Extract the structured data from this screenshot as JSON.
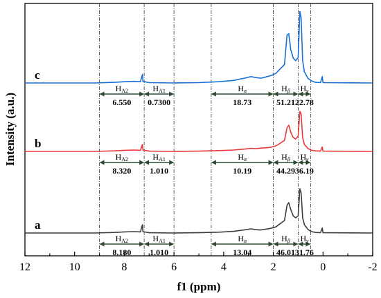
{
  "chart_data": {
    "type": "line",
    "title": "",
    "xlabel": "f1 (ppm)",
    "ylabel": "Intensity (a.u.)",
    "xlim": [
      12,
      -2
    ],
    "x_reversed": true,
    "x_ticks": [
      "12",
      "10",
      "8",
      "6",
      "4",
      "2",
      "0",
      "-2"
    ],
    "x_minor_step": 1,
    "y_ticks_shown": false,
    "grid": false,
    "legend": "none",
    "boundaries_ppm": [
      9.0,
      7.2,
      6.0,
      4.5,
      2.0,
      1.0,
      0.5
    ],
    "series": [
      {
        "name": "a",
        "color": "#3c3c3c",
        "baseline": 0.0,
        "points": [
          [
            12,
            0
          ],
          [
            9.2,
            0
          ],
          [
            8.4,
            0.02
          ],
          [
            8.0,
            0.04
          ],
          [
            7.6,
            0.05
          ],
          [
            7.35,
            0.04
          ],
          [
            7.27,
            0.3
          ],
          [
            7.25,
            0.05
          ],
          [
            7.0,
            0.01
          ],
          [
            6.0,
            0
          ],
          [
            5.0,
            0.01
          ],
          [
            4.2,
            0.03
          ],
          [
            3.6,
            0.06
          ],
          [
            3.1,
            0.12
          ],
          [
            2.9,
            0.15
          ],
          [
            2.7,
            0.12
          ],
          [
            2.5,
            0.11
          ],
          [
            2.3,
            0.14
          ],
          [
            2.1,
            0.17
          ],
          [
            1.9,
            0.22
          ],
          [
            1.75,
            0.32
          ],
          [
            1.55,
            0.45
          ],
          [
            1.45,
            1.0
          ],
          [
            1.38,
            1.1
          ],
          [
            1.3,
            0.85
          ],
          [
            1.2,
            0.62
          ],
          [
            1.1,
            0.55
          ],
          [
            1.0,
            0.62
          ],
          [
            0.93,
            1.6
          ],
          [
            0.88,
            1.45
          ],
          [
            0.82,
            0.55
          ],
          [
            0.75,
            0.3
          ],
          [
            0.6,
            0.12
          ],
          [
            0.45,
            0.05
          ],
          [
            0.3,
            0.02
          ],
          [
            0.1,
            0.01
          ],
          [
            0.03,
            0.18
          ],
          [
            0.0,
            0.01
          ],
          [
            -2,
            0
          ]
        ],
        "regions": [
          {
            "label": "H",
            "sub": "A2",
            "value": "8.180"
          },
          {
            "label": "H",
            "sub": "A1",
            "value": "1.010"
          },
          {
            "label": "H",
            "sub": "α",
            "value": "13.04"
          },
          {
            "label": "H",
            "sub": "β",
            "value": "46.01"
          },
          {
            "label": "H",
            "sub": "γ",
            "value": "31.76"
          }
        ]
      },
      {
        "name": "b",
        "color": "#e8383b",
        "baseline": 0.0,
        "points": [
          [
            12,
            0
          ],
          [
            9.2,
            0
          ],
          [
            8.4,
            0.02
          ],
          [
            8.0,
            0.04
          ],
          [
            7.6,
            0.05
          ],
          [
            7.35,
            0.04
          ],
          [
            7.27,
            0.25
          ],
          [
            7.25,
            0.05
          ],
          [
            7.0,
            0.01
          ],
          [
            6.0,
            0
          ],
          [
            5.0,
            0.01
          ],
          [
            4.2,
            0.03
          ],
          [
            3.6,
            0.05
          ],
          [
            3.1,
            0.09
          ],
          [
            2.9,
            0.11
          ],
          [
            2.7,
            0.1
          ],
          [
            2.5,
            0.12
          ],
          [
            2.3,
            0.13
          ],
          [
            2.1,
            0.15
          ],
          [
            1.9,
            0.2
          ],
          [
            1.75,
            0.28
          ],
          [
            1.55,
            0.4
          ],
          [
            1.45,
            0.85
          ],
          [
            1.38,
            0.95
          ],
          [
            1.3,
            0.7
          ],
          [
            1.2,
            0.5
          ],
          [
            1.1,
            0.45
          ],
          [
            1.0,
            0.55
          ],
          [
            0.93,
            1.45
          ],
          [
            0.88,
            1.35
          ],
          [
            0.82,
            0.5
          ],
          [
            0.75,
            0.25
          ],
          [
            0.6,
            0.1
          ],
          [
            0.45,
            0.04
          ],
          [
            0.3,
            0.02
          ],
          [
            0.1,
            0.01
          ],
          [
            0.03,
            0.16
          ],
          [
            0.0,
            0.01
          ],
          [
            -2,
            0
          ]
        ],
        "regions": [
          {
            "label": "H",
            "sub": "A2",
            "value": "8.320"
          },
          {
            "label": "H",
            "sub": "A1",
            "value": "1.010"
          },
          {
            "label": "H",
            "sub": "α",
            "value": "10.19"
          },
          {
            "label": "H",
            "sub": "β",
            "value": "44.29"
          },
          {
            "label": "H",
            "sub": "γ",
            "value": "36.19"
          }
        ]
      },
      {
        "name": "c",
        "color": "#1a6ed8",
        "baseline": 0.0,
        "points": [
          [
            12,
            0
          ],
          [
            9.2,
            0
          ],
          [
            8.4,
            0.02
          ],
          [
            8.0,
            0.04
          ],
          [
            7.6,
            0.05
          ],
          [
            7.35,
            0.04
          ],
          [
            7.27,
            0.27
          ],
          [
            7.25,
            0.05
          ],
          [
            7.0,
            0.01
          ],
          [
            6.0,
            0
          ],
          [
            5.0,
            0.01
          ],
          [
            4.2,
            0.04
          ],
          [
            3.6,
            0.08
          ],
          [
            3.1,
            0.16
          ],
          [
            2.9,
            0.2
          ],
          [
            2.7,
            0.17
          ],
          [
            2.5,
            0.15
          ],
          [
            2.3,
            0.19
          ],
          [
            2.1,
            0.23
          ],
          [
            1.9,
            0.3
          ],
          [
            1.75,
            0.42
          ],
          [
            1.55,
            0.58
          ],
          [
            1.45,
            1.5
          ],
          [
            1.38,
            1.55
          ],
          [
            1.3,
            1.05
          ],
          [
            1.2,
            0.78
          ],
          [
            1.1,
            0.7
          ],
          [
            1.0,
            0.8
          ],
          [
            0.93,
            2.25
          ],
          [
            0.88,
            2.05
          ],
          [
            0.82,
            0.7
          ],
          [
            0.75,
            0.35
          ],
          [
            0.6,
            0.14
          ],
          [
            0.45,
            0.06
          ],
          [
            0.3,
            0.02
          ],
          [
            0.1,
            0.01
          ],
          [
            0.03,
            0.2
          ],
          [
            0.0,
            0.01
          ],
          [
            -2,
            0
          ]
        ],
        "regions": [
          {
            "label": "H",
            "sub": "A2",
            "value": "6.550"
          },
          {
            "label": "H",
            "sub": "A1",
            "value": "0.7300"
          },
          {
            "label": "H",
            "sub": "α",
            "value": "18.73"
          },
          {
            "label": "H",
            "sub": "β",
            "value": "51.21"
          },
          {
            "label": "H",
            "sub": "γ",
            "value": "22.78"
          }
        ]
      }
    ]
  }
}
